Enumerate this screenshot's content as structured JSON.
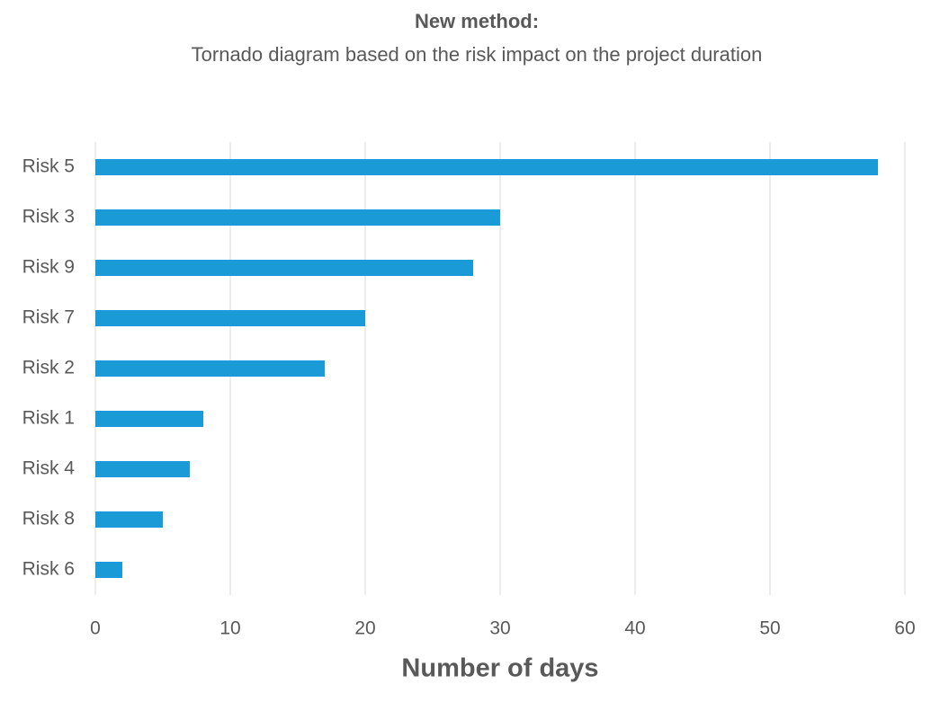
{
  "chart_data": {
    "type": "bar",
    "orientation": "horizontal",
    "title": "New method:",
    "subtitle": "Tornado diagram based on the risk impact on the project duration",
    "x_label": "Number of days",
    "categories": [
      "Risk 5",
      "Risk 3",
      "Risk 9",
      "Risk 7",
      "Risk 2",
      "Risk 1",
      "Risk 4",
      "Risk 8",
      "Risk 6"
    ],
    "values": [
      58,
      30,
      28,
      20,
      17,
      8,
      7,
      5,
      2
    ],
    "color": "#1a9bd7",
    "xlim": [
      0,
      60
    ],
    "xticks": [
      0,
      10,
      20,
      30,
      40,
      50,
      60
    ],
    "grid": true
  }
}
